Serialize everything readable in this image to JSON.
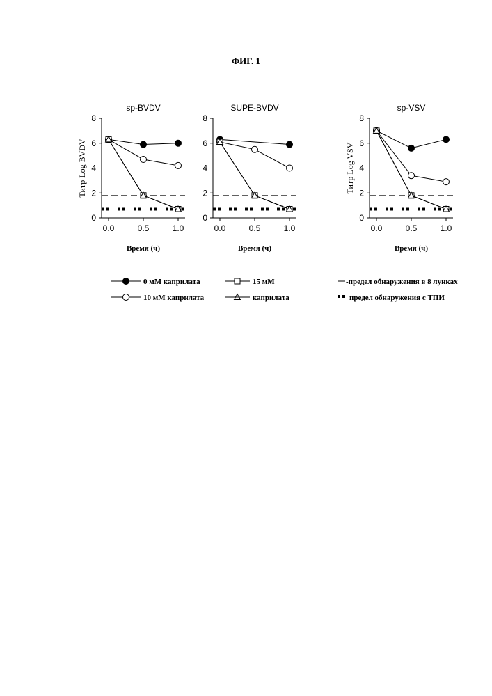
{
  "figure_title": "ФИГ. 1",
  "chart_data": [
    {
      "type": "line",
      "title": "sp-BVDV",
      "xlabel": "Время (ч)",
      "ylabel": "Титр Log BVDV",
      "xlim": [
        -0.1,
        1.1
      ],
      "ylim": [
        0,
        8
      ],
      "x_ticks": [
        "0.0",
        "0.5",
        "1.0"
      ],
      "y_ticks": [
        "0",
        "2",
        "4",
        "6",
        "8"
      ],
      "x": [
        0.0,
        0.5,
        1.0
      ],
      "series": [
        {
          "marker": "filled-circle",
          "values": [
            6.3,
            5.9,
            6.0
          ]
        },
        {
          "marker": "open-circle",
          "values": [
            6.3,
            4.7,
            4.2
          ]
        },
        {
          "marker": "open-square",
          "values": [
            6.3,
            1.8,
            0.7
          ]
        },
        {
          "marker": "open-triangle",
          "values": [
            6.3,
            1.8,
            0.7
          ]
        }
      ],
      "detection_limit_8_wells": 1.8,
      "detection_limit_tpi": 0.7
    },
    {
      "type": "line",
      "title": "SUPE-BVDV",
      "xlabel": "Время (ч)",
      "ylabel": "",
      "xlim": [
        -0.1,
        1.1
      ],
      "ylim": [
        0,
        8
      ],
      "x_ticks": [
        "0.0",
        "0.5",
        "1.0"
      ],
      "y_ticks": [
        "0",
        "2",
        "4",
        "6",
        "8"
      ],
      "x": [
        0.0,
        0.5,
        1.0
      ],
      "series": [
        {
          "marker": "filled-circle",
          "values": [
            6.3,
            null,
            5.9
          ]
        },
        {
          "marker": "open-circle",
          "values": [
            6.1,
            5.5,
            4.0
          ]
        },
        {
          "marker": "open-square",
          "values": [
            6.1,
            1.8,
            0.7
          ]
        },
        {
          "marker": "open-triangle",
          "values": [
            6.1,
            1.8,
            0.7
          ]
        }
      ],
      "detection_limit_8_wells": 1.8,
      "detection_limit_tpi": 0.7
    },
    {
      "type": "line",
      "title": "sp-VSV",
      "xlabel": "Время (ч)",
      "ylabel": "Титр Log VSV",
      "xlim": [
        -0.1,
        1.1
      ],
      "ylim": [
        0,
        8
      ],
      "x_ticks": [
        "0.0",
        "0.5",
        "1.0"
      ],
      "y_ticks": [
        "0",
        "2",
        "4",
        "6",
        "8"
      ],
      "x": [
        0.0,
        0.5,
        1.0
      ],
      "series": [
        {
          "marker": "filled-circle",
          "values": [
            7.0,
            5.6,
            6.3
          ]
        },
        {
          "marker": "open-circle",
          "values": [
            7.0,
            3.4,
            2.9
          ]
        },
        {
          "marker": "open-square",
          "values": [
            7.0,
            1.8,
            0.7
          ]
        },
        {
          "marker": "open-triangle",
          "values": [
            7.0,
            1.8,
            0.7
          ]
        }
      ],
      "detection_limit_8_wells": 1.8,
      "detection_limit_tpi": 0.7
    }
  ],
  "legend": {
    "items": [
      {
        "marker": "filled-circle",
        "label": "0 мМ каприлата"
      },
      {
        "marker": "open-circle",
        "label": "10 мМ каприлата"
      },
      {
        "marker": "open-square",
        "label": "15 мМ"
      },
      {
        "marker": "open-triangle",
        "label": "каприлата"
      },
      {
        "marker": "dash-line",
        "label": "-предел обнаружения в 8 лунках"
      },
      {
        "marker": "dot-line",
        "label": "предел обнаружения с ТПИ"
      }
    ]
  }
}
